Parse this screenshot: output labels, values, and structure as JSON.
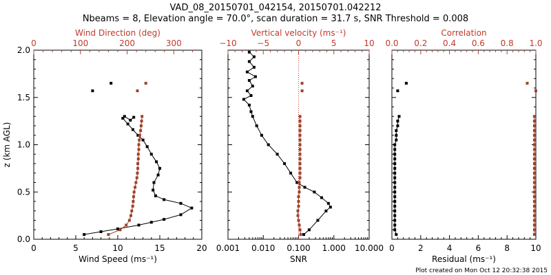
{
  "title_line1": "VAD_08_20150701_042154, 20150701.042212",
  "title_line2": "Nbeams = 8, Elevation angle = 70.0°, scan duration = 31.7 s, SNR Threshold = 0.008",
  "footer": "Plot created on Mon Oct 12 20:32:38 2015",
  "colors": {
    "black": "#000000",
    "red": "#c0392b",
    "rust": "#a0412b"
  },
  "chart_data": [
    {
      "type": "line",
      "ylabel": "z (km AGL)",
      "ylim": [
        0,
        2.0
      ],
      "yticks": [
        "0.0",
        "0.5",
        "1.0",
        "1.5",
        "2.0"
      ],
      "bottom_axis": {
        "label": "Wind Speed (ms⁻¹)",
        "range": [
          0,
          20
        ],
        "ticks": [
          "0",
          "5",
          "10",
          "15",
          "20"
        ]
      },
      "top_axis": {
        "label": "Wind Direction (deg)",
        "range": [
          0,
          360
        ],
        "ticks": [
          "0",
          "100",
          "200",
          "300"
        ]
      },
      "series": [
        {
          "name": "Wind Speed",
          "axis": "bottom",
          "color": "black",
          "connected": true,
          "points": [
            [
              6.0,
              0.05
            ],
            [
              8.0,
              0.08
            ],
            [
              10.0,
              0.11
            ],
            [
              12.5,
              0.15
            ],
            [
              14.0,
              0.18
            ],
            [
              15.5,
              0.21
            ],
            [
              17.5,
              0.26
            ],
            [
              18.8,
              0.33
            ],
            [
              17.5,
              0.38
            ],
            [
              15.5,
              0.42
            ],
            [
              14.5,
              0.46
            ],
            [
              14.2,
              0.52
            ],
            [
              14.3,
              0.6
            ],
            [
              14.8,
              0.68
            ],
            [
              15.0,
              0.75
            ],
            [
              14.6,
              0.82
            ],
            [
              14.0,
              0.9
            ],
            [
              13.5,
              0.98
            ],
            [
              13.0,
              1.05
            ],
            [
              12.4,
              1.1
            ],
            [
              11.8,
              1.16
            ],
            [
              11.2,
              1.22
            ],
            [
              10.6,
              1.28
            ],
            [
              10.8,
              1.3
            ],
            [
              11.5,
              1.26
            ],
            [
              11.9,
              1.29
            ]
          ]
        },
        {
          "name": "Wind Speed isolated",
          "axis": "bottom",
          "color": "black",
          "connected": false,
          "points": [
            [
              7.0,
              1.57
            ],
            [
              9.2,
              1.65
            ]
          ]
        },
        {
          "name": "Wind Direction",
          "axis": "top",
          "color": "rust",
          "connected": true,
          "points": [
            [
              160,
              0.05
            ],
            [
              185,
              0.1
            ],
            [
              198,
              0.15
            ],
            [
              205,
              0.2
            ],
            [
              208,
              0.25
            ],
            [
              210,
              0.3
            ],
            [
              212,
              0.35
            ],
            [
              213,
              0.4
            ],
            [
              214,
              0.45
            ],
            [
              215,
              0.5
            ],
            [
              217,
              0.55
            ],
            [
              219,
              0.6
            ],
            [
              221,
              0.65
            ],
            [
              222,
              0.7
            ],
            [
              223,
              0.75
            ],
            [
              223,
              0.8
            ],
            [
              224,
              0.85
            ],
            [
              224,
              0.9
            ],
            [
              225,
              0.95
            ],
            [
              225,
              1.0
            ],
            [
              226,
              1.05
            ],
            [
              227,
              1.1
            ],
            [
              229,
              1.15
            ],
            [
              230,
              1.2
            ],
            [
              231,
              1.25
            ],
            [
              232,
              1.3
            ]
          ]
        },
        {
          "name": "Wind Direction isolated",
          "axis": "top",
          "color": "rust",
          "connected": false,
          "points": [
            [
              222,
              1.57
            ],
            [
              240,
              1.65
            ]
          ]
        }
      ]
    },
    {
      "type": "line",
      "bottom_axis": {
        "label": "SNR",
        "range": [
          0.001,
          10
        ],
        "scale": "log",
        "ticks": [
          "0.001",
          "0.010",
          "0.100",
          "1.000",
          "10.000"
        ]
      },
      "top_axis": {
        "label": "Vertical velocity (ms⁻¹)",
        "range": [
          -10,
          10
        ],
        "ticks": [
          "−10",
          "−5",
          "0",
          "5",
          "10"
        ]
      },
      "reference_line": {
        "axis": "top",
        "value": 0,
        "style": "dotted"
      },
      "series": [
        {
          "name": "SNR",
          "axis": "bottom",
          "color": "black",
          "connected": true,
          "points": [
            [
              0.14,
              0.05
            ],
            [
              0.2,
              0.1
            ],
            [
              0.35,
              0.2
            ],
            [
              0.6,
              0.3
            ],
            [
              0.8,
              0.34
            ],
            [
              0.7,
              0.38
            ],
            [
              0.45,
              0.44
            ],
            [
              0.28,
              0.5
            ],
            [
              0.15,
              0.55
            ],
            [
              0.09,
              0.6
            ],
            [
              0.06,
              0.7
            ],
            [
              0.04,
              0.8
            ],
            [
              0.025,
              0.9
            ],
            [
              0.014,
              1.0
            ],
            [
              0.009,
              1.1
            ],
            [
              0.0065,
              1.2
            ],
            [
              0.005,
              1.3
            ],
            [
              0.0045,
              1.35
            ],
            [
              0.004,
              1.42
            ],
            [
              0.0028,
              1.48
            ],
            [
              0.0045,
              1.52
            ],
            [
              0.0035,
              1.57
            ],
            [
              0.005,
              1.62
            ],
            [
              0.004,
              1.68
            ],
            [
              0.006,
              1.72
            ],
            [
              0.0035,
              1.77
            ],
            [
              0.0055,
              1.82
            ],
            [
              0.004,
              1.88
            ],
            [
              0.0055,
              1.93
            ],
            [
              0.004,
              1.98
            ]
          ]
        },
        {
          "name": "Vertical velocity",
          "axis": "top",
          "color": "rust",
          "connected": true,
          "points": [
            [
              0.3,
              0.05
            ],
            [
              0.2,
              0.1
            ],
            [
              0.1,
              0.15
            ],
            [
              0.0,
              0.2
            ],
            [
              -0.1,
              0.25
            ],
            [
              -0.1,
              0.3
            ],
            [
              0.0,
              0.35
            ],
            [
              0.0,
              0.4
            ],
            [
              0.0,
              0.45
            ],
            [
              0.1,
              0.5
            ],
            [
              0.1,
              0.55
            ],
            [
              0.1,
              0.6
            ],
            [
              0.2,
              0.65
            ],
            [
              0.2,
              0.7
            ],
            [
              0.2,
              0.75
            ],
            [
              0.2,
              0.8
            ],
            [
              0.2,
              0.85
            ],
            [
              0.2,
              0.9
            ],
            [
              0.2,
              0.95
            ],
            [
              0.2,
              1.0
            ],
            [
              0.2,
              1.05
            ],
            [
              0.2,
              1.1
            ],
            [
              0.2,
              1.15
            ],
            [
              0.2,
              1.2
            ],
            [
              0.2,
              1.25
            ],
            [
              0.2,
              1.3
            ]
          ]
        },
        {
          "name": "Vertical velocity isolated",
          "axis": "top",
          "color": "rust",
          "connected": false,
          "points": [
            [
              0.5,
              1.57
            ],
            [
              0.5,
              1.65
            ]
          ]
        }
      ]
    },
    {
      "type": "line",
      "bottom_axis": {
        "label": "Residual (ms⁻¹)",
        "range": [
          0,
          10
        ],
        "ticks": [
          "0",
          "2",
          "4",
          "6",
          "8",
          "10"
        ]
      },
      "top_axis": {
        "label": "Correlation",
        "range": [
          0.0,
          1.0
        ],
        "ticks": [
          "0.0",
          "0.2",
          "0.4",
          "0.6",
          "0.8",
          "1.0"
        ]
      },
      "series": [
        {
          "name": "Residual",
          "axis": "bottom",
          "color": "black",
          "connected": true,
          "points": [
            [
              0.3,
              0.05
            ],
            [
              0.2,
              0.1
            ],
            [
              0.2,
              0.15
            ],
            [
              0.2,
              0.2
            ],
            [
              0.2,
              0.25
            ],
            [
              0.2,
              0.3
            ],
            [
              0.2,
              0.35
            ],
            [
              0.2,
              0.4
            ],
            [
              0.2,
              0.45
            ],
            [
              0.2,
              0.5
            ],
            [
              0.2,
              0.55
            ],
            [
              0.2,
              0.6
            ],
            [
              0.2,
              0.65
            ],
            [
              0.2,
              0.7
            ],
            [
              0.2,
              0.75
            ],
            [
              0.2,
              0.8
            ],
            [
              0.2,
              0.85
            ],
            [
              0.2,
              0.9
            ],
            [
              0.2,
              0.95
            ],
            [
              0.2,
              1.0
            ],
            [
              0.3,
              1.05
            ],
            [
              0.3,
              1.1
            ],
            [
              0.3,
              1.15
            ],
            [
              0.4,
              1.2
            ],
            [
              0.4,
              1.25
            ],
            [
              0.5,
              1.3
            ]
          ]
        },
        {
          "name": "Residual isolated",
          "axis": "bottom",
          "color": "black",
          "connected": false,
          "points": [
            [
              0.4,
              1.57
            ],
            [
              1.0,
              1.65
            ]
          ]
        },
        {
          "name": "Correlation",
          "axis": "top",
          "color": "rust",
          "connected": true,
          "points": [
            [
              0.99,
              0.05
            ],
            [
              0.99,
              0.1
            ],
            [
              0.99,
              0.15
            ],
            [
              0.99,
              0.2
            ],
            [
              0.99,
              0.25
            ],
            [
              0.99,
              0.3
            ],
            [
              0.99,
              0.35
            ],
            [
              0.99,
              0.4
            ],
            [
              0.99,
              0.45
            ],
            [
              0.99,
              0.5
            ],
            [
              0.99,
              0.55
            ],
            [
              0.99,
              0.6
            ],
            [
              0.99,
              0.65
            ],
            [
              0.99,
              0.7
            ],
            [
              0.99,
              0.75
            ],
            [
              0.99,
              0.8
            ],
            [
              0.99,
              0.85
            ],
            [
              0.99,
              0.9
            ],
            [
              0.99,
              0.95
            ],
            [
              0.99,
              1.0
            ],
            [
              0.99,
              1.05
            ],
            [
              0.99,
              1.1
            ],
            [
              0.99,
              1.15
            ],
            [
              0.99,
              1.2
            ],
            [
              0.99,
              1.25
            ],
            [
              0.99,
              1.3
            ]
          ]
        },
        {
          "name": "Correlation isolated",
          "axis": "top",
          "color": "rust",
          "connected": false,
          "points": [
            [
              0.94,
              1.65
            ],
            [
              1.0,
              1.57
            ]
          ]
        }
      ]
    }
  ]
}
